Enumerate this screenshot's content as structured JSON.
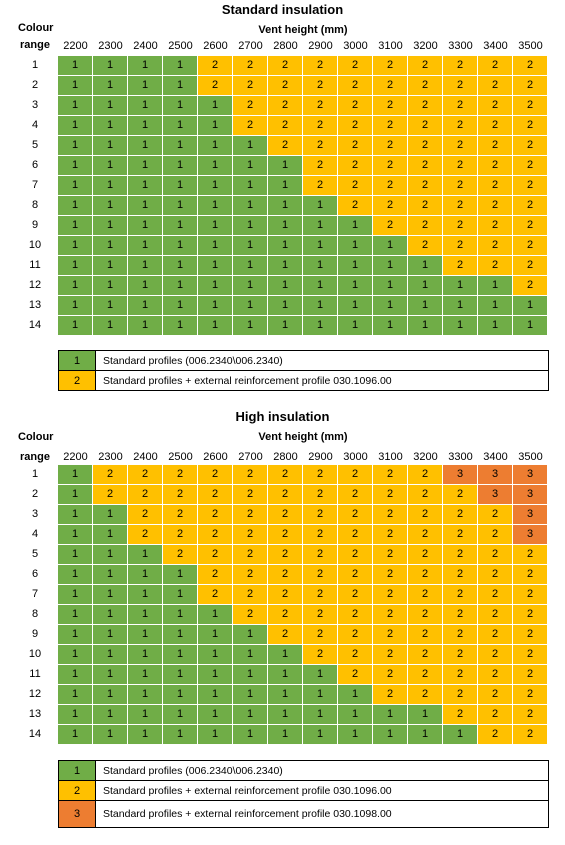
{
  "colors": {
    "1": "#70ad47",
    "2": "#ffc000",
    "3": "#ed7d31"
  },
  "columns": [
    "2200",
    "2300",
    "2400",
    "2500",
    "2600",
    "2700",
    "2800",
    "2900",
    "3000",
    "3100",
    "3200",
    "3300",
    "3400",
    "3500"
  ],
  "rows": [
    "1",
    "2",
    "3",
    "4",
    "5",
    "6",
    "7",
    "8",
    "9",
    "10",
    "11",
    "12",
    "13",
    "14"
  ],
  "standard": {
    "title": "Standard insulation",
    "colour_label": "Colour",
    "range_label": "range",
    "vent_height_label": "Vent height (mm)",
    "grid": [
      [
        "1",
        "1",
        "1",
        "1",
        "2",
        "2",
        "2",
        "2",
        "2",
        "2",
        "2",
        "2",
        "2",
        "2"
      ],
      [
        "1",
        "1",
        "1",
        "1",
        "2",
        "2",
        "2",
        "2",
        "2",
        "2",
        "2",
        "2",
        "2",
        "2"
      ],
      [
        "1",
        "1",
        "1",
        "1",
        "1",
        "2",
        "2",
        "2",
        "2",
        "2",
        "2",
        "2",
        "2",
        "2"
      ],
      [
        "1",
        "1",
        "1",
        "1",
        "1",
        "2",
        "2",
        "2",
        "2",
        "2",
        "2",
        "2",
        "2",
        "2"
      ],
      [
        "1",
        "1",
        "1",
        "1",
        "1",
        "1",
        "2",
        "2",
        "2",
        "2",
        "2",
        "2",
        "2",
        "2"
      ],
      [
        "1",
        "1",
        "1",
        "1",
        "1",
        "1",
        "1",
        "2",
        "2",
        "2",
        "2",
        "2",
        "2",
        "2"
      ],
      [
        "1",
        "1",
        "1",
        "1",
        "1",
        "1",
        "1",
        "2",
        "2",
        "2",
        "2",
        "2",
        "2",
        "2"
      ],
      [
        "1",
        "1",
        "1",
        "1",
        "1",
        "1",
        "1",
        "1",
        "2",
        "2",
        "2",
        "2",
        "2",
        "2"
      ],
      [
        "1",
        "1",
        "1",
        "1",
        "1",
        "1",
        "1",
        "1",
        "1",
        "2",
        "2",
        "2",
        "2",
        "2"
      ],
      [
        "1",
        "1",
        "1",
        "1",
        "1",
        "1",
        "1",
        "1",
        "1",
        "1",
        "2",
        "2",
        "2",
        "2"
      ],
      [
        "1",
        "1",
        "1",
        "1",
        "1",
        "1",
        "1",
        "1",
        "1",
        "1",
        "1",
        "2",
        "2",
        "2"
      ],
      [
        "1",
        "1",
        "1",
        "1",
        "1",
        "1",
        "1",
        "1",
        "1",
        "1",
        "1",
        "1",
        "1",
        "2"
      ],
      [
        "1",
        "1",
        "1",
        "1",
        "1",
        "1",
        "1",
        "1",
        "1",
        "1",
        "1",
        "1",
        "1",
        "1"
      ],
      [
        "1",
        "1",
        "1",
        "1",
        "1",
        "1",
        "1",
        "1",
        "1",
        "1",
        "1",
        "1",
        "1",
        "1"
      ]
    ],
    "legend": [
      {
        "key": "1",
        "text": "Standard profiles (006.2340\\006.2340)"
      },
      {
        "key": "2",
        "text": "Standard profiles + external reinforcement profile 030.1096.00"
      }
    ]
  },
  "high": {
    "title": "High insulation",
    "colour_label": "Colour",
    "range_label": "range",
    "vent_height_label": "Vent height (mm)",
    "grid": [
      [
        "1",
        "2",
        "2",
        "2",
        "2",
        "2",
        "2",
        "2",
        "2",
        "2",
        "2",
        "3",
        "3",
        "3"
      ],
      [
        "1",
        "2",
        "2",
        "2",
        "2",
        "2",
        "2",
        "2",
        "2",
        "2",
        "2",
        "2",
        "3",
        "3"
      ],
      [
        "1",
        "1",
        "2",
        "2",
        "2",
        "2",
        "2",
        "2",
        "2",
        "2",
        "2",
        "2",
        "2",
        "3"
      ],
      [
        "1",
        "1",
        "2",
        "2",
        "2",
        "2",
        "2",
        "2",
        "2",
        "2",
        "2",
        "2",
        "2",
        "3"
      ],
      [
        "1",
        "1",
        "1",
        "2",
        "2",
        "2",
        "2",
        "2",
        "2",
        "2",
        "2",
        "2",
        "2",
        "2"
      ],
      [
        "1",
        "1",
        "1",
        "1",
        "2",
        "2",
        "2",
        "2",
        "2",
        "2",
        "2",
        "2",
        "2",
        "2"
      ],
      [
        "1",
        "1",
        "1",
        "1",
        "2",
        "2",
        "2",
        "2",
        "2",
        "2",
        "2",
        "2",
        "2",
        "2"
      ],
      [
        "1",
        "1",
        "1",
        "1",
        "1",
        "2",
        "2",
        "2",
        "2",
        "2",
        "2",
        "2",
        "2",
        "2"
      ],
      [
        "1",
        "1",
        "1",
        "1",
        "1",
        "1",
        "2",
        "2",
        "2",
        "2",
        "2",
        "2",
        "2",
        "2"
      ],
      [
        "1",
        "1",
        "1",
        "1",
        "1",
        "1",
        "1",
        "2",
        "2",
        "2",
        "2",
        "2",
        "2",
        "2"
      ],
      [
        "1",
        "1",
        "1",
        "1",
        "1",
        "1",
        "1",
        "1",
        "2",
        "2",
        "2",
        "2",
        "2",
        "2"
      ],
      [
        "1",
        "1",
        "1",
        "1",
        "1",
        "1",
        "1",
        "1",
        "1",
        "2",
        "2",
        "2",
        "2",
        "2"
      ],
      [
        "1",
        "1",
        "1",
        "1",
        "1",
        "1",
        "1",
        "1",
        "1",
        "1",
        "1",
        "2",
        "2",
        "2"
      ],
      [
        "1",
        "1",
        "1",
        "1",
        "1",
        "1",
        "1",
        "1",
        "1",
        "1",
        "1",
        "1",
        "2",
        "2"
      ]
    ],
    "legend": [
      {
        "key": "1",
        "text": "Standard profiles (006.2340\\006.2340)"
      },
      {
        "key": "2",
        "text": "Standard profiles + external reinforcement profile 030.1096.00"
      },
      {
        "key": "3",
        "text": "Standard profiles + external reinforcement profile 030.1098.00"
      }
    ]
  }
}
